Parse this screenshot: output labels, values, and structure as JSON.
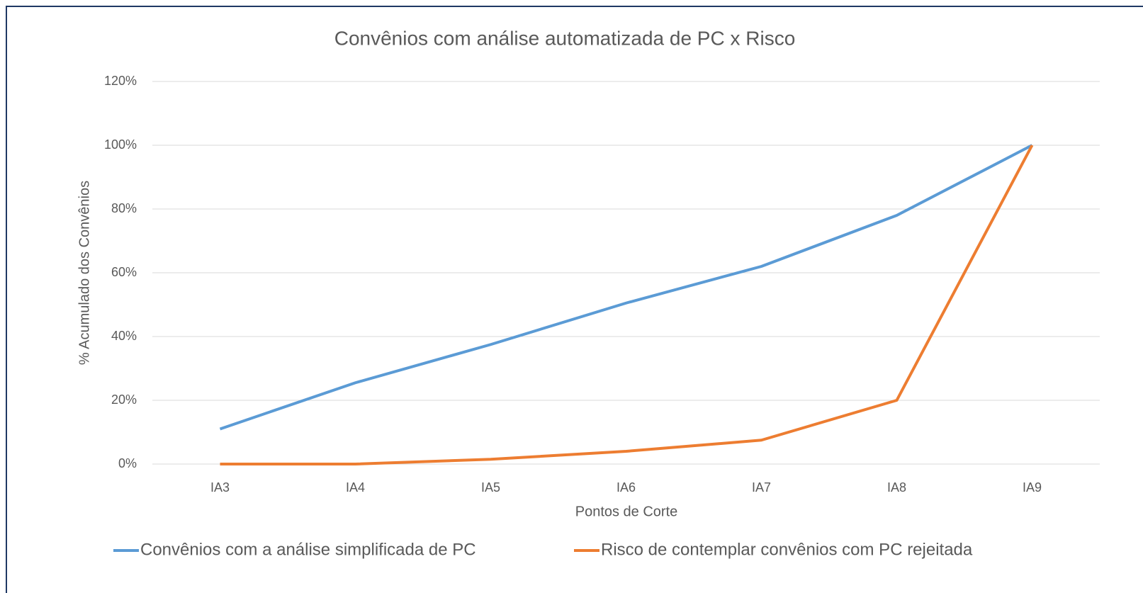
{
  "chart_data": {
    "type": "line",
    "title": "Convênios com análise automatizada de PC x Risco",
    "x_label": "Pontos de Corte",
    "y_label": "% Acumulado dos Convênios",
    "categories": [
      "IA3",
      "IA4",
      "IA5",
      "IA6",
      "IA7",
      "IA8",
      "IA9"
    ],
    "series": [
      {
        "name": "Convênios com a análise simplificada de PC",
        "color": "#5b9bd5",
        "values": [
          11,
          25.5,
          37.5,
          50.5,
          62,
          78,
          100
        ]
      },
      {
        "name": "Risco de contemplar convênios com PC rejeitada",
        "color": "#ed7d31",
        "values": [
          0,
          0,
          1.5,
          4,
          7.5,
          20,
          100
        ]
      }
    ],
    "ylim": [
      0,
      120
    ],
    "yticks": [
      {
        "value": 0,
        "label": "0%"
      },
      {
        "value": 20,
        "label": "20%"
      },
      {
        "value": 40,
        "label": "40%"
      },
      {
        "value": 60,
        "label": "60%"
      },
      {
        "value": 80,
        "label": "80%"
      },
      {
        "value": 100,
        "label": "100%"
      },
      {
        "value": 120,
        "label": "120%"
      }
    ],
    "grid": true,
    "legend": "bottom"
  }
}
